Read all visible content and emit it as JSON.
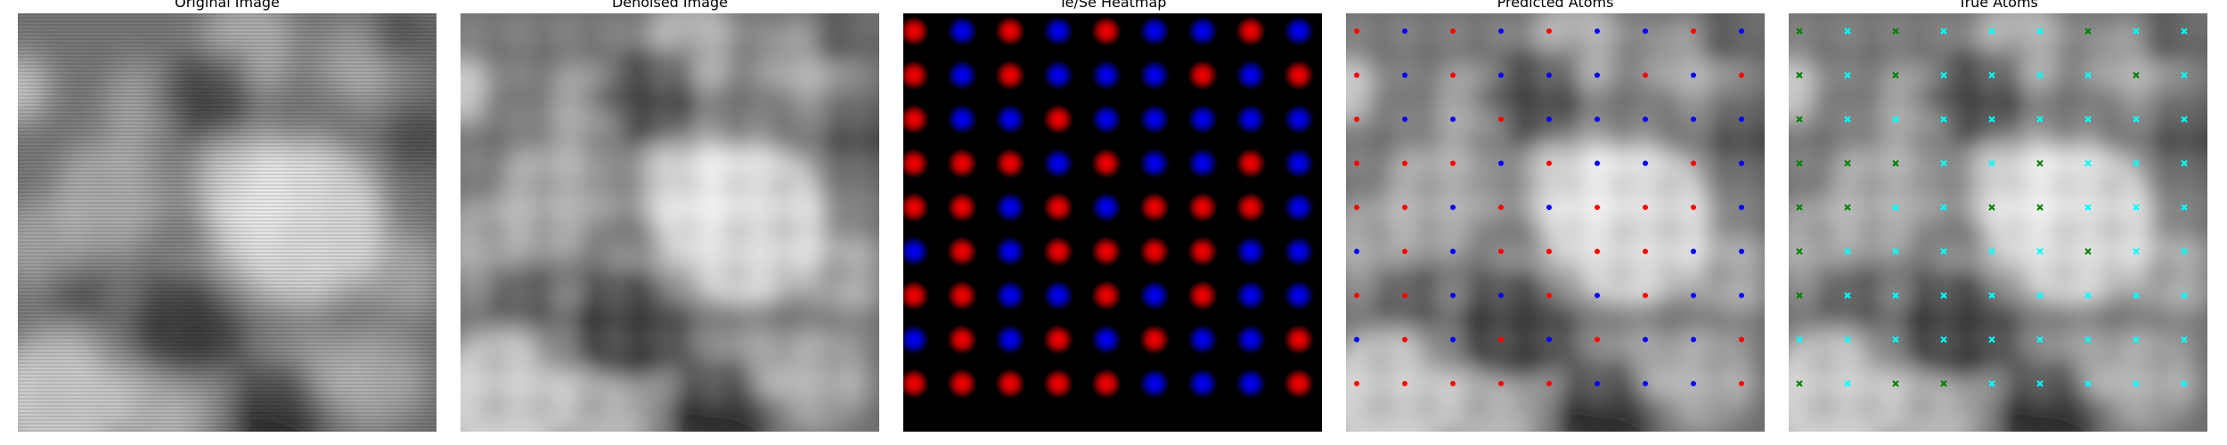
{
  "panels": [
    {
      "key": "original",
      "title": "Original Image"
    },
    {
      "key": "denoised",
      "title": "Denoised Image"
    },
    {
      "key": "heatmap",
      "title": "Te/Se Heatmap"
    },
    {
      "key": "predicted",
      "title": "Predicted Atoms"
    },
    {
      "key": "true",
      "title": "True Atoms"
    }
  ],
  "colors": {
    "te": "#ff0000",
    "se": "#0000ff",
    "true_a": "#00ffff",
    "true_b": "#008000"
  },
  "lattice": {
    "rows": 9,
    "cols": 9,
    "types": [
      [
        "R",
        "B",
        "R",
        "B",
        "R",
        "B",
        "B",
        "R",
        "B"
      ],
      [
        "R",
        "B",
        "R",
        "B",
        "B",
        "B",
        "R",
        "B",
        "R"
      ],
      [
        "R",
        "B",
        "B",
        "R",
        "B",
        "B",
        "B",
        "B",
        "B"
      ],
      [
        "R",
        "R",
        "R",
        "B",
        "R",
        "B",
        "B",
        "R",
        "B"
      ],
      [
        "R",
        "R",
        "B",
        "R",
        "B",
        "R",
        "R",
        "R",
        "B"
      ],
      [
        "B",
        "R",
        "B",
        "R",
        "R",
        "R",
        "R",
        "B",
        "B"
      ],
      [
        "R",
        "R",
        "B",
        "B",
        "R",
        "B",
        "R",
        "B",
        "B"
      ],
      [
        "B",
        "R",
        "B",
        "R",
        "B",
        "R",
        "B",
        "B",
        "R"
      ],
      [
        "R",
        "R",
        "R",
        "R",
        "R",
        "B",
        "B",
        "B",
        "R"
      ]
    ],
    "true_types": [
      [
        "G",
        "C",
        "G",
        "C",
        "C",
        "C",
        "G",
        "C",
        "C"
      ],
      [
        "G",
        "C",
        "G",
        "C",
        "C",
        "C",
        "C",
        "G",
        "C"
      ],
      [
        "G",
        "C",
        "C",
        "C",
        "C",
        "C",
        "C",
        "C",
        "C"
      ],
      [
        "G",
        "G",
        "G",
        "C",
        "C",
        "G",
        "C",
        "C",
        "C"
      ],
      [
        "G",
        "G",
        "C",
        "C",
        "G",
        "G",
        "C",
        "C",
        "C"
      ],
      [
        "G",
        "C",
        "C",
        "C",
        "C",
        "C",
        "G",
        "C",
        "C"
      ],
      [
        "G",
        "C",
        "C",
        "C",
        "C",
        "C",
        "C",
        "C",
        "C"
      ],
      [
        "C",
        "C",
        "C",
        "C",
        "C",
        "C",
        "C",
        "C",
        "C"
      ],
      [
        "G",
        "C",
        "G",
        "G",
        "C",
        "C",
        "C",
        "C",
        "C"
      ]
    ]
  }
}
